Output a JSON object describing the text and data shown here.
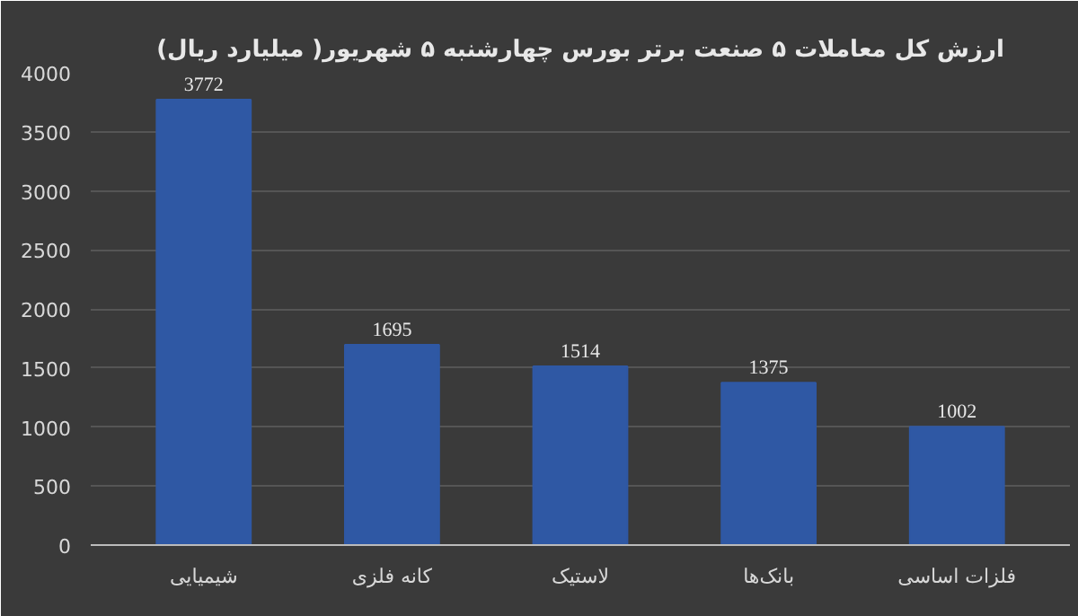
{
  "chart_data": {
    "type": "bar",
    "title": "ارزش کل معاملات ۵ صنعت برتر بورس چهارشنبه ۵ شهریور( میلیارد ریال)",
    "categories": [
      "شیمیایی",
      "کانه فلزی",
      "لاستیک",
      "بانک‌ها",
      "فلزات اساسی"
    ],
    "values": [
      3772,
      1695,
      1514,
      1375,
      1002
    ],
    "color": "#2f58a4",
    "ylim": [
      0,
      4000
    ],
    "yticks": [
      0,
      500,
      1000,
      1500,
      2000,
      2500,
      3000,
      3500,
      4000
    ],
    "grid": "y",
    "data_labels": true
  }
}
